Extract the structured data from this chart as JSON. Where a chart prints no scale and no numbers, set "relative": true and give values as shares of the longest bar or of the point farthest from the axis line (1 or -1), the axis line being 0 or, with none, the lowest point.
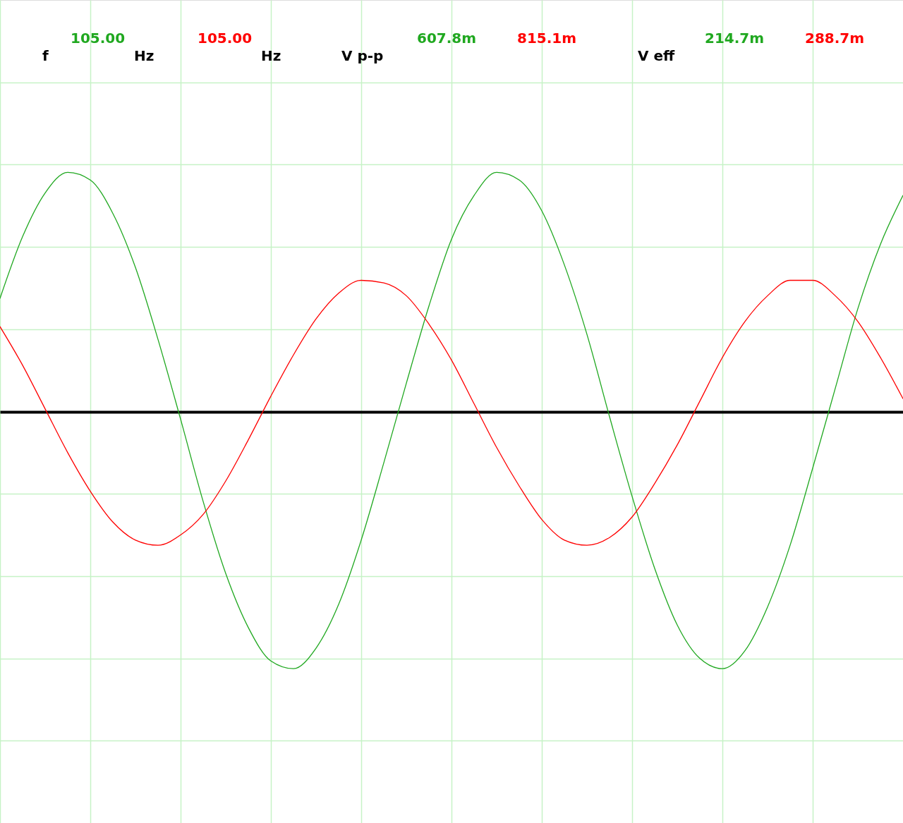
{
  "chart_data": {
    "type": "line",
    "relative": true,
    "categories": [
      null,
      null,
      null,
      null,
      null,
      null,
      null,
      null,
      null,
      null,
      null,
      null,
      null,
      null,
      null,
      null,
      null,
      null,
      null,
      null,
      null,
      null,
      null,
      null,
      null,
      null,
      null,
      null,
      null,
      null,
      null,
      null,
      null,
      null,
      null,
      null,
      null,
      null,
      null,
      null,
      null
    ],
    "series": [
      {
        "color": "#20a820",
        "values": [
          0.44,
          0.68,
          0.85,
          0.93,
          0.9,
          0.77,
          0.56,
          0.28,
          -0.03,
          -0.35,
          -0.63,
          -0.84,
          -0.97,
          -1.0,
          -0.92,
          -0.75,
          -0.5,
          -0.2,
          0.11,
          0.41,
          0.67,
          0.84,
          0.93,
          0.9,
          0.78,
          0.57,
          0.3,
          -0.02,
          -0.33,
          -0.61,
          -0.83,
          -0.96,
          -1.0,
          -0.93,
          -0.76,
          -0.52,
          -0.22,
          0.09,
          0.4,
          0.65,
          0.84
        ]
      },
      {
        "color": "#ff0000",
        "values": [
          0.33,
          0.18,
          0.01,
          -0.16,
          -0.31,
          -0.43,
          -0.5,
          -0.52,
          -0.48,
          -0.4,
          -0.27,
          -0.11,
          0.06,
          0.22,
          0.36,
          0.46,
          0.51,
          0.5,
          0.45,
          0.34,
          0.2,
          0.03,
          -0.14,
          -0.29,
          -0.42,
          -0.5,
          -0.52,
          -0.49,
          -0.41,
          -0.28,
          -0.13,
          0.04,
          0.21,
          0.35,
          0.45,
          0.51,
          0.51,
          0.45,
          0.35,
          0.21,
          0.05
        ]
      }
    ],
    "annotations": [
      "f",
      "105.00",
      "Hz",
      "105.00",
      "Hz",
      "V p-p",
      "607.8m",
      "815.1m",
      "V eff",
      "214.7m",
      "288.7m"
    ],
    "grid": true
  }
}
